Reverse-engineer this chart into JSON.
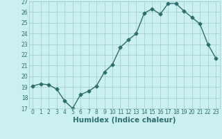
{
  "xlabel": "Humidex (Indice chaleur)",
  "x": [
    0,
    1,
    2,
    3,
    4,
    5,
    6,
    7,
    8,
    9,
    10,
    11,
    12,
    13,
    14,
    15,
    16,
    17,
    18,
    19,
    20,
    21,
    22,
    23
  ],
  "y": [
    19.1,
    19.3,
    19.2,
    18.8,
    17.7,
    17.0,
    18.3,
    18.6,
    19.1,
    20.4,
    21.1,
    22.7,
    23.4,
    24.0,
    25.9,
    26.3,
    25.8,
    26.8,
    26.8,
    26.1,
    25.5,
    24.9,
    23.0,
    21.7
  ],
  "line_color": "#2d6e6e",
  "marker": "D",
  "marker_size": 2.5,
  "line_width": 1.0,
  "bg_color": "#caf0f0",
  "grid_color": "#a0c8c8",
  "ylim": [
    17,
    27
  ],
  "xlim": [
    -0.5,
    23.5
  ],
  "yticks": [
    17,
    18,
    19,
    20,
    21,
    22,
    23,
    24,
    25,
    26,
    27
  ],
  "xtick_labels": [
    "0",
    "1",
    "2",
    "3",
    "4",
    "5",
    "6",
    "7",
    "8",
    "9",
    "10",
    "11",
    "12",
    "13",
    "14",
    "15",
    "16",
    "17",
    "18",
    "19",
    "20",
    "21",
    "22",
    "23"
  ],
  "tick_fontsize": 5.5,
  "xlabel_fontsize": 7.5,
  "text_color": "#2d6e6e"
}
